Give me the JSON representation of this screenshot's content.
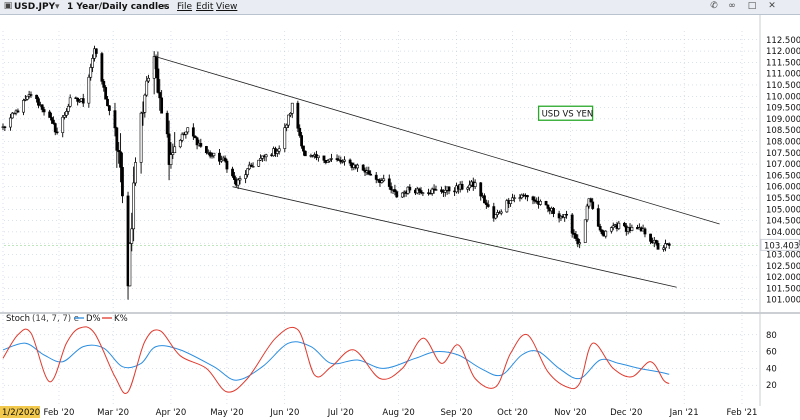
{
  "toolbar": {
    "symbol": "USD.JPY",
    "period": "1 Year/Daily candles",
    "menu": [
      "File",
      "Edit",
      "View"
    ],
    "icons": [
      "phone-icon",
      "link-icon",
      "fullscreen-icon",
      "close-icon"
    ]
  },
  "chart_data": {
    "type": "candlestick",
    "annotation": "USD VS YEN",
    "price_axis": {
      "min": 100.5,
      "max": 112.8,
      "ticks": [
        "112.500",
        "112.000",
        "111.500",
        "111.000",
        "110.500",
        "110.000",
        "109.500",
        "109.000",
        "108.500",
        "108.000",
        "107.500",
        "107.000",
        "106.500",
        "106.000",
        "105.500",
        "105.000",
        "104.500",
        "104.000",
        "103.500",
        "103.000",
        "102.500",
        "102.000",
        "101.500",
        "101.000"
      ],
      "last_price_label": "103.403",
      "last_price": 103.403
    },
    "x_labels": [
      "1/2/2020",
      "Feb '20",
      "Mar '20",
      "Apr '20",
      "May '20",
      "Jun '20",
      "Jul '20",
      "Aug '20",
      "Sep '20",
      "Oct '20",
      "Nov '20",
      "Dec '20",
      "Jan '21",
      "Feb '21"
    ],
    "x_label_dates": [
      "2020-01-02",
      "2020-02-01",
      "2020-03-01",
      "2020-04-01",
      "2020-05-01",
      "2020-06-01",
      "2020-07-01",
      "2020-08-01",
      "2020-09-01",
      "2020-10-01",
      "2020-11-01",
      "2020-12-01",
      "2021-01-01",
      "2021-02-01"
    ],
    "price_path": [
      [
        "2020-01-02",
        108.6
      ],
      [
        "2020-01-10",
        109.4
      ],
      [
        "2020-01-17",
        110.1
      ],
      [
        "2020-01-24",
        109.4
      ],
      [
        "2020-01-31",
        108.4
      ],
      [
        "2020-02-07",
        109.8
      ],
      [
        "2020-02-14",
        109.8
      ],
      [
        "2020-02-20",
        112.1
      ],
      [
        "2020-02-27",
        109.6
      ],
      [
        "2020-03-04",
        107.5
      ],
      [
        "2020-03-09",
        102.1
      ],
      [
        "2020-03-13",
        107.2
      ],
      [
        "2020-03-19",
        110.8
      ],
      [
        "2020-03-24",
        111.3
      ],
      [
        "2020-03-31",
        107.6
      ],
      [
        "2020-04-10",
        108.5
      ],
      [
        "2020-04-20",
        107.5
      ],
      [
        "2020-04-30",
        107.1
      ],
      [
        "2020-05-06",
        106.1
      ],
      [
        "2020-05-15",
        107.0
      ],
      [
        "2020-05-29",
        107.7
      ],
      [
        "2020-06-05",
        109.6
      ],
      [
        "2020-06-12",
        107.3
      ],
      [
        "2020-06-26",
        107.2
      ],
      [
        "2020-07-10",
        106.9
      ],
      [
        "2020-07-24",
        106.2
      ],
      [
        "2020-07-31",
        105.6
      ],
      [
        "2020-08-07",
        105.9
      ],
      [
        "2020-08-21",
        105.8
      ],
      [
        "2020-08-31",
        105.9
      ],
      [
        "2020-09-11",
        106.1
      ],
      [
        "2020-09-21",
        104.6
      ],
      [
        "2020-09-30",
        105.5
      ],
      [
        "2020-10-09",
        105.6
      ],
      [
        "2020-10-20",
        105.0
      ],
      [
        "2020-10-30",
        104.6
      ],
      [
        "2020-11-06",
        103.4
      ],
      [
        "2020-11-11",
        105.4
      ],
      [
        "2020-11-18",
        103.8
      ],
      [
        "2020-11-25",
        104.3
      ],
      [
        "2020-12-04",
        104.1
      ],
      [
        "2020-12-11",
        104.0
      ],
      [
        "2020-12-18",
        103.3
      ],
      [
        "2020-12-24",
        103.4
      ]
    ],
    "trendlines": [
      {
        "from": [
          "2020-03-24",
          111.75
        ],
        "to": [
          "2021-01-20",
          104.35
        ]
      },
      {
        "from": [
          "2020-05-04",
          106.0
        ],
        "to": [
          "2020-12-28",
          101.55
        ]
      }
    ],
    "stochastic": {
      "label": "Stoch",
      "params": "(14, 7, 7) e",
      "d_label": "D%",
      "k_label": "K%",
      "d_color": "#2c8ee0",
      "k_color": "#e03a2e",
      "range": [
        0,
        100
      ],
      "ticks": [
        "80",
        "60",
        "40",
        "20"
      ],
      "tick_values": [
        80,
        60,
        40,
        20
      ],
      "k_points": [
        [
          "2020-01-02",
          52
        ],
        [
          "2020-01-10",
          80
        ],
        [
          "2020-01-17",
          82
        ],
        [
          "2020-01-27",
          24
        ],
        [
          "2020-02-05",
          70
        ],
        [
          "2020-02-12",
          88
        ],
        [
          "2020-02-20",
          82
        ],
        [
          "2020-03-02",
          30
        ],
        [
          "2020-03-09",
          12
        ],
        [
          "2020-03-18",
          72
        ],
        [
          "2020-03-26",
          85
        ],
        [
          "2020-04-06",
          55
        ],
        [
          "2020-04-20",
          40
        ],
        [
          "2020-05-01",
          12
        ],
        [
          "2020-05-12",
          28
        ],
        [
          "2020-05-27",
          76
        ],
        [
          "2020-06-08",
          86
        ],
        [
          "2020-06-17",
          32
        ],
        [
          "2020-06-26",
          42
        ],
        [
          "2020-07-08",
          62
        ],
        [
          "2020-07-22",
          28
        ],
        [
          "2020-08-03",
          40
        ],
        [
          "2020-08-14",
          76
        ],
        [
          "2020-08-24",
          46
        ],
        [
          "2020-09-02",
          68
        ],
        [
          "2020-09-11",
          28
        ],
        [
          "2020-09-22",
          18
        ],
        [
          "2020-09-30",
          58
        ],
        [
          "2020-10-09",
          80
        ],
        [
          "2020-10-20",
          36
        ],
        [
          "2020-10-30",
          18
        ],
        [
          "2020-11-06",
          22
        ],
        [
          "2020-11-13",
          70
        ],
        [
          "2020-11-24",
          40
        ],
        [
          "2020-12-04",
          30
        ],
        [
          "2020-12-14",
          48
        ],
        [
          "2020-12-21",
          26
        ],
        [
          "2020-12-24",
          22
        ]
      ],
      "d_points": [
        [
          "2020-01-02",
          62
        ],
        [
          "2020-01-14",
          70
        ],
        [
          "2020-01-24",
          56
        ],
        [
          "2020-02-03",
          48
        ],
        [
          "2020-02-14",
          66
        ],
        [
          "2020-02-25",
          64
        ],
        [
          "2020-03-06",
          42
        ],
        [
          "2020-03-16",
          46
        ],
        [
          "2020-03-24",
          66
        ],
        [
          "2020-04-06",
          62
        ],
        [
          "2020-04-24",
          42
        ],
        [
          "2020-05-06",
          26
        ],
        [
          "2020-05-20",
          42
        ],
        [
          "2020-06-03",
          70
        ],
        [
          "2020-06-15",
          66
        ],
        [
          "2020-06-26",
          46
        ],
        [
          "2020-07-10",
          50
        ],
        [
          "2020-07-24",
          40
        ],
        [
          "2020-08-10",
          52
        ],
        [
          "2020-08-21",
          60
        ],
        [
          "2020-09-02",
          56
        ],
        [
          "2020-09-14",
          40
        ],
        [
          "2020-09-25",
          32
        ],
        [
          "2020-10-06",
          56
        ],
        [
          "2020-10-15",
          60
        ],
        [
          "2020-10-26",
          40
        ],
        [
          "2020-11-06",
          28
        ],
        [
          "2020-11-17",
          50
        ],
        [
          "2020-11-27",
          46
        ],
        [
          "2020-12-08",
          40
        ],
        [
          "2020-12-18",
          36
        ],
        [
          "2020-12-24",
          33
        ]
      ]
    }
  }
}
